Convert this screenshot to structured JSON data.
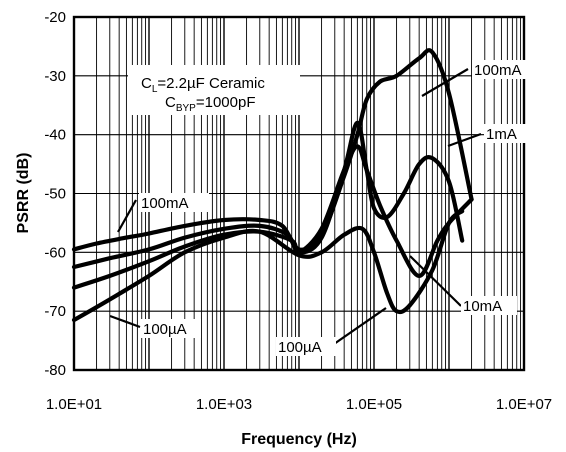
{
  "chart_data": {
    "type": "line",
    "title": "",
    "xlabel": "Frequency (Hz)",
    "ylabel": "PSRR (dB)",
    "xscale": "log",
    "xlim": [
      10,
      10000000
    ],
    "ylim": [
      -80,
      -20
    ],
    "grid": true,
    "x_tick_labels": [
      "1.0E+01",
      "1.0E+03",
      "1.0E+05",
      "1.0E+07"
    ],
    "y_tick_labels": [
      "-20",
      "-30",
      "-40",
      "-50",
      "-60",
      "-70",
      "-80"
    ],
    "conditions": {
      "cl": {
        "main": "C",
        "sub": "L",
        "rest": "=2.2µF Ceramic"
      },
      "cbyp": {
        "main": "C",
        "sub": "BYP",
        "rest": "=1000pF"
      }
    },
    "series": [
      {
        "name": "100mA",
        "x": [
          10,
          20,
          50,
          100,
          300,
          1000,
          3000,
          6000,
          10000,
          20000,
          40000,
          60000,
          80000,
          120000,
          200000,
          400000,
          600000,
          1000000,
          2000000
        ],
        "y": [
          -59.5,
          -58.5,
          -57.5,
          -56.8,
          -55.5,
          -54.5,
          -54.5,
          -55.5,
          -59.5,
          -57,
          -47,
          -40,
          -34,
          -31,
          -30,
          -27,
          -26,
          -33,
          -51
        ]
      },
      {
        "name": "1mA",
        "x": [
          10,
          30,
          100,
          300,
          1000,
          3000,
          7000,
          10000,
          20000,
          40000,
          60000,
          80000,
          100000,
          150000,
          250000,
          400000,
          600000,
          1000000,
          1500000
        ],
        "y": [
          -62.5,
          -61,
          -59.5,
          -57.5,
          -56,
          -55.5,
          -57,
          -60,
          -57.5,
          -46,
          -38,
          -46,
          -52.5,
          -54,
          -50,
          -45,
          -44,
          -48,
          -58
        ]
      },
      {
        "name": "10mA",
        "x": [
          10,
          30,
          100,
          300,
          1000,
          3000,
          8000,
          10000,
          20000,
          40000,
          60000,
          80000,
          120000,
          200000,
          400000,
          700000,
          1000000,
          2000000
        ],
        "y": [
          -66,
          -64,
          -61.5,
          -59,
          -57,
          -56.5,
          -58,
          -60,
          -56,
          -46,
          -42,
          -46,
          -52,
          -58,
          -64,
          -58,
          -55,
          -51
        ]
      },
      {
        "name": "100µA",
        "x": [
          10,
          30,
          100,
          300,
          1000,
          3000,
          10000,
          20000,
          40000,
          70000,
          100000,
          150000,
          200000,
          300000,
          600000,
          1000000,
          1500000
        ],
        "y": [
          -71.5,
          -68,
          -64,
          -60,
          -57.5,
          -56.5,
          -60.5,
          -60,
          -57,
          -56,
          -60,
          -67,
          -70,
          -69,
          -63,
          -55,
          -53
        ]
      }
    ],
    "annotations": [
      {
        "text": "100mA",
        "location": "upper right"
      },
      {
        "text": "1mA",
        "location": "right"
      },
      {
        "text": "10mA",
        "location": "lower right"
      },
      {
        "text": "100mA",
        "location": "left"
      },
      {
        "text": "100µA",
        "location": "lower left"
      },
      {
        "text": "100µA",
        "location": "bottom center"
      }
    ]
  }
}
